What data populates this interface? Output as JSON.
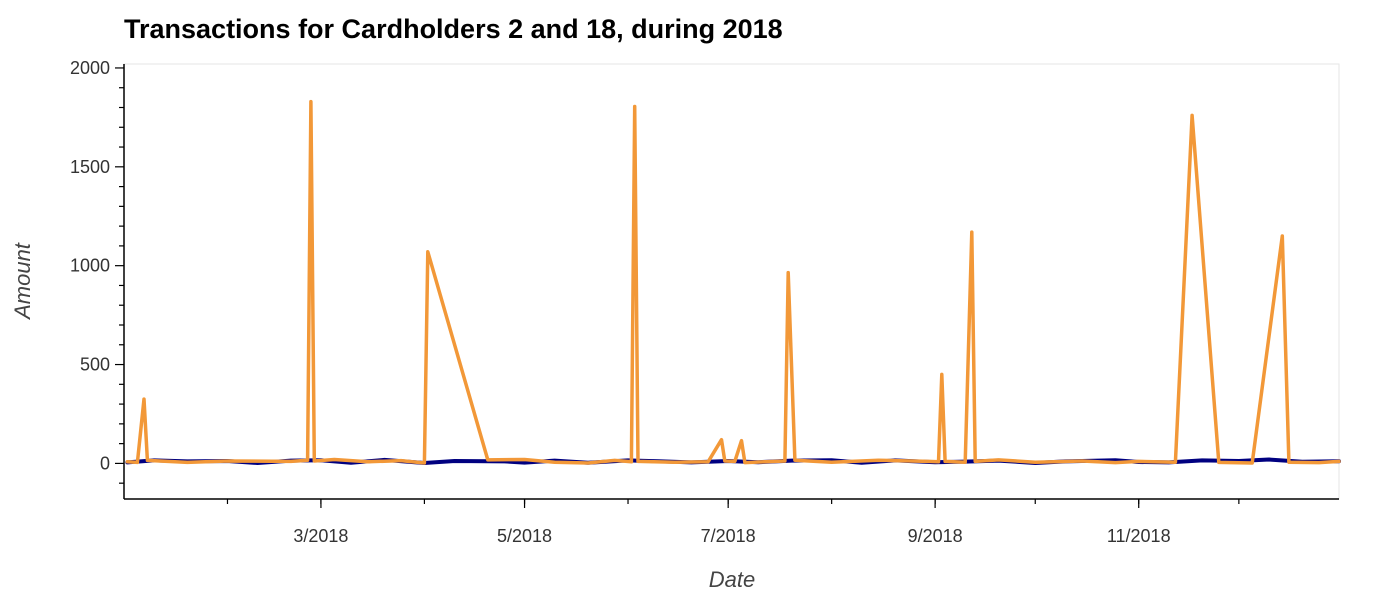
{
  "chart_data": {
    "type": "line",
    "title": "Transactions for Cardholders 2 and 18, during 2018",
    "xlabel": "Date",
    "ylabel": "Amount",
    "x_tick_labels": [
      "3/2018",
      "5/2018",
      "7/2018",
      "9/2018",
      "11/2018"
    ],
    "x_tick_dates": [
      "2018-03-01",
      "2018-05-01",
      "2018-07-01",
      "2018-09-01",
      "2018-11-01"
    ],
    "xlim": [
      "2018-01-01",
      "2018-12-31"
    ],
    "ylim": [
      -180,
      2020
    ],
    "y_ticks": [
      0,
      500,
      1000,
      1500,
      2000
    ],
    "grid": false,
    "series": [
      {
        "color": "#000080",
        "points": [
          [
            "2018-01-02",
            5
          ],
          [
            "2018-01-10",
            15
          ],
          [
            "2018-01-20",
            10
          ],
          [
            "2018-02-01",
            12
          ],
          [
            "2018-02-10",
            2
          ],
          [
            "2018-02-20",
            14
          ],
          [
            "2018-03-01",
            16
          ],
          [
            "2018-03-10",
            3
          ],
          [
            "2018-03-20",
            18
          ],
          [
            "2018-04-01",
            2
          ],
          [
            "2018-04-10",
            12
          ],
          [
            "2018-04-25",
            10
          ],
          [
            "2018-05-01",
            4
          ],
          [
            "2018-05-10",
            14
          ],
          [
            "2018-05-20",
            3
          ],
          [
            "2018-06-01",
            15
          ],
          [
            "2018-06-10",
            11
          ],
          [
            "2018-06-20",
            5
          ],
          [
            "2018-07-01",
            12
          ],
          [
            "2018-07-10",
            6
          ],
          [
            "2018-07-20",
            14
          ],
          [
            "2018-08-01",
            16
          ],
          [
            "2018-08-10",
            3
          ],
          [
            "2018-08-20",
            15
          ],
          [
            "2018-09-01",
            6
          ],
          [
            "2018-09-10",
            9
          ],
          [
            "2018-09-20",
            14
          ],
          [
            "2018-10-01",
            2
          ],
          [
            "2018-10-10",
            10
          ],
          [
            "2018-10-25",
            16
          ],
          [
            "2018-11-01",
            7
          ],
          [
            "2018-11-10",
            5
          ],
          [
            "2018-11-20",
            15
          ],
          [
            "2018-12-01",
            12
          ],
          [
            "2018-12-10",
            20
          ],
          [
            "2018-12-20",
            8
          ],
          [
            "2018-12-31",
            11
          ]
        ]
      },
      {
        "color": "#f29838",
        "points": [
          [
            "2018-01-02",
            8
          ],
          [
            "2018-01-05",
            5
          ],
          [
            "2018-01-07",
            325
          ],
          [
            "2018-01-08",
            15
          ],
          [
            "2018-01-20",
            5
          ],
          [
            "2018-02-01",
            12
          ],
          [
            "2018-02-20",
            10
          ],
          [
            "2018-02-25",
            16
          ],
          [
            "2018-02-26",
            1830
          ],
          [
            "2018-02-27",
            12
          ],
          [
            "2018-03-05",
            20
          ],
          [
            "2018-03-15",
            8
          ],
          [
            "2018-03-25",
            14
          ],
          [
            "2018-04-01",
            2
          ],
          [
            "2018-04-02",
            1070
          ],
          [
            "2018-04-20",
            18
          ],
          [
            "2018-05-01",
            20
          ],
          [
            "2018-05-10",
            6
          ],
          [
            "2018-05-20",
            2
          ],
          [
            "2018-05-28",
            15
          ],
          [
            "2018-06-02",
            8
          ],
          [
            "2018-06-03",
            1805
          ],
          [
            "2018-06-04",
            10
          ],
          [
            "2018-06-15",
            6
          ],
          [
            "2018-06-25",
            8
          ],
          [
            "2018-06-29",
            120
          ],
          [
            "2018-06-30",
            12
          ],
          [
            "2018-07-03",
            10
          ],
          [
            "2018-07-05",
            115
          ],
          [
            "2018-07-06",
            4
          ],
          [
            "2018-07-15",
            10
          ],
          [
            "2018-07-18",
            12
          ],
          [
            "2018-07-19",
            965
          ],
          [
            "2018-07-21",
            16
          ],
          [
            "2018-08-01",
            6
          ],
          [
            "2018-08-15",
            16
          ],
          [
            "2018-08-30",
            10
          ],
          [
            "2018-09-02",
            8
          ],
          [
            "2018-09-03",
            450
          ],
          [
            "2018-09-04",
            10
          ],
          [
            "2018-09-10",
            6
          ],
          [
            "2018-09-12",
            1170
          ],
          [
            "2018-09-13",
            10
          ],
          [
            "2018-09-20",
            18
          ],
          [
            "2018-10-01",
            6
          ],
          [
            "2018-10-15",
            12
          ],
          [
            "2018-10-25",
            4
          ],
          [
            "2018-11-01",
            10
          ],
          [
            "2018-11-12",
            6
          ],
          [
            "2018-11-17",
            1760
          ],
          [
            "2018-11-25",
            5
          ],
          [
            "2018-12-05",
            2
          ],
          [
            "2018-12-14",
            1150
          ],
          [
            "2018-12-16",
            6
          ],
          [
            "2018-12-25",
            4
          ],
          [
            "2018-12-31",
            10
          ]
        ]
      }
    ]
  }
}
